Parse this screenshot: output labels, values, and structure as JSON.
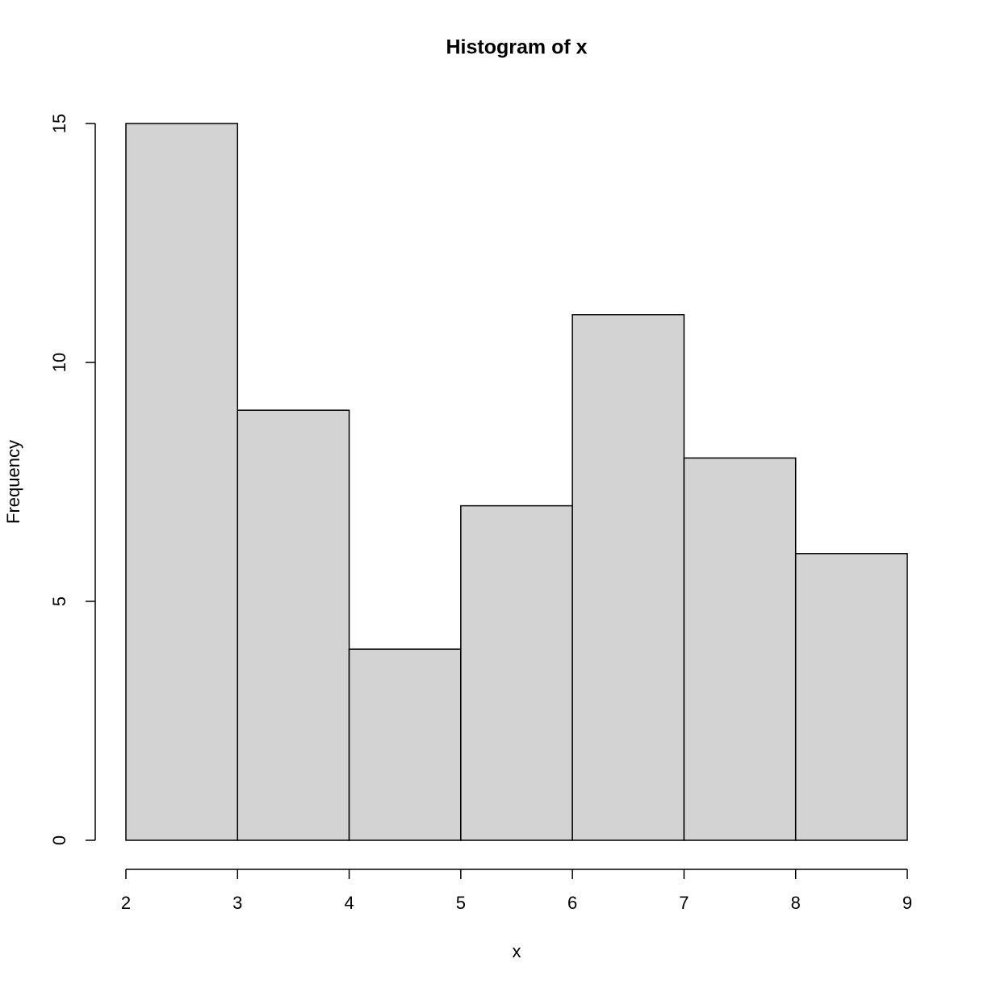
{
  "chart_data": {
    "type": "histogram",
    "title": "Histogram of x",
    "x_label": "x",
    "y_label": "Frequency",
    "bins": [
      2,
      3,
      4,
      5,
      6,
      7,
      8,
      9
    ],
    "values": [
      15,
      9,
      4,
      7,
      11,
      8,
      6
    ],
    "color": "#d3d3d3",
    "xlim": [
      2,
      9
    ],
    "xticks": [
      2,
      3,
      4,
      5,
      6,
      7,
      8,
      9
    ],
    "ylim": [
      0,
      15
    ],
    "yticks": [
      0,
      5,
      10,
      15
    ]
  }
}
